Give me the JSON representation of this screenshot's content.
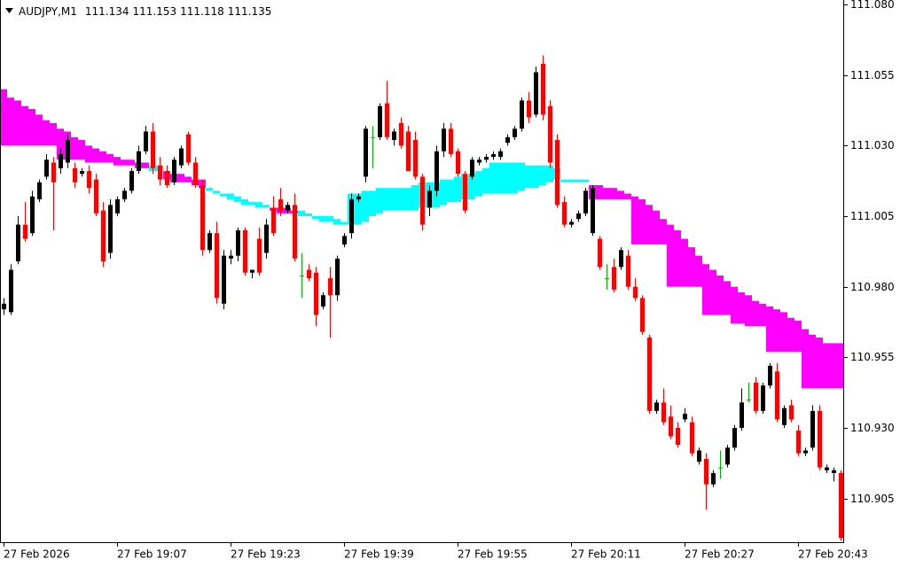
{
  "chart_data": {
    "type": "candlestick",
    "symbol": "AUDJPY,M1",
    "quote": [
      111.134,
      111.153,
      111.118,
      111.135
    ],
    "categories": [
      "27 Feb 2026",
      null,
      null,
      null,
      null,
      null,
      null,
      null,
      null,
      null,
      null,
      null,
      null,
      null,
      null,
      null,
      "27 Feb 19:07",
      null,
      null,
      null,
      null,
      null,
      null,
      null,
      null,
      null,
      null,
      null,
      null,
      null,
      null,
      null,
      "27 Feb 19:23",
      null,
      null,
      null,
      null,
      null,
      null,
      null,
      null,
      null,
      null,
      null,
      null,
      null,
      null,
      null,
      "27 Feb 19:39",
      null,
      null,
      null,
      null,
      null,
      null,
      null,
      null,
      null,
      null,
      null,
      null,
      null,
      null,
      null,
      "27 Feb 19:55",
      null,
      null,
      null,
      null,
      null,
      null,
      null,
      null,
      null,
      null,
      null,
      null,
      null,
      null,
      null,
      "27 Feb 20:11",
      null,
      null,
      null,
      null,
      null,
      null,
      null,
      null,
      null,
      null,
      null,
      null,
      null,
      null,
      null,
      "27 Feb 20:27",
      null,
      null,
      null,
      null,
      null,
      null,
      null,
      null,
      null,
      null,
      null,
      null,
      null,
      null,
      null,
      "27 Feb 20:43",
      null,
      null,
      null,
      null,
      null,
      null
    ],
    "open": [
      110.972,
      110.971,
      110.989,
      111.002,
      110.999,
      111.011,
      111.019,
      111.024,
      111.022,
      111.024,
      111.022,
      111.02,
      111.021,
      111.018,
      111.007,
      110.992,
      111.006,
      111.011,
      111.014,
      111.021,
      111.028,
      111.035,
      111.023,
      111.021,
      111.017,
      111.023,
      111.034,
      111.024,
      111.016,
      110.993,
      110.999,
      110.974,
      110.99,
      110.991,
      111.0,
      110.985,
      110.997,
      110.992,
      111.008,
      111.011,
      111.007,
      111.009,
      110.984,
      110.986,
      110.985,
      110.973,
      110.983,
      110.977,
      110.995,
      110.999,
      111.011,
      111.019,
      111.033,
      111.033,
      111.045,
      111.032,
      111.038,
      111.035,
      111.032,
      111.019,
      111.008,
      111.014,
      111.028,
      111.036,
      111.028,
      111.02,
      111.019,
      111.024,
      111.025,
      111.026,
      111.026,
      111.031,
      111.033,
      111.036,
      111.046,
      111.041,
      111.059,
      111.044,
      111.032,
      111.01,
      111.002,
      111.004,
      111.006,
      110.999,
      110.997,
      110.983,
      110.987,
      110.987,
      110.991,
      110.98,
      110.976,
      110.962,
      110.936,
      110.939,
      110.934,
      110.93,
      110.933,
      110.932,
      110.918,
      110.919,
      110.91,
      110.916,
      110.917,
      110.923,
      110.93,
      110.94,
      110.946,
      110.936,
      110.945,
      110.95,
      110.931,
      110.938,
      110.929,
      110.921,
      110.923,
      110.936,
      110.915,
      110.914,
      110.914
    ],
    "high": [
      110.976,
      110.988,
      111.005,
      111.01,
      111.014,
      111.018,
      111.027,
      111.026,
      111.029,
      111.034,
      111.024,
      111.022,
      111.023,
      111.02,
      111.01,
      111.011,
      111.012,
      111.015,
      111.022,
      111.03,
      111.037,
      111.038,
      111.026,
      111.023,
      111.026,
      111.03,
      111.035,
      111.026,
      111.018,
      111.0,
      111.003,
      110.993,
      110.993,
      111.001,
      111.001,
      110.986,
      111.001,
      111.004,
      111.012,
      111.015,
      111.01,
      111.013,
      110.992,
      110.988,
      110.987,
      110.978,
      110.987,
      110.991,
      110.999,
      111.013,
      111.013,
      111.037,
      111.037,
      111.045,
      111.053,
      111.036,
      111.04,
      111.037,
      111.035,
      111.02,
      111.016,
      111.03,
      111.038,
      111.038,
      111.029,
      111.021,
      111.026,
      111.026,
      111.027,
      111.028,
      111.029,
      111.034,
      111.037,
      111.047,
      111.049,
      111.058,
      111.062,
      111.046,
      111.034,
      111.012,
      111.004,
      111.007,
      111.015,
      111.016,
      110.998,
      110.988,
      110.99,
      110.994,
      110.993,
      110.983,
      110.977,
      110.963,
      110.94,
      110.944,
      110.938,
      110.932,
      110.937,
      110.934,
      110.923,
      110.921,
      110.915,
      110.922,
      110.924,
      110.931,
      110.944,
      110.946,
      110.948,
      110.946,
      110.953,
      110.953,
      110.938,
      110.94,
      110.931,
      110.923,
      110.938,
      110.938,
      110.917,
      110.916,
      110.915
    ],
    "low": [
      110.97,
      110.97,
      110.988,
      110.996,
      110.998,
      111.01,
      111.018,
      111.0,
      111.02,
      111.022,
      111.015,
      111.019,
      111.013,
      111.005,
      110.987,
      110.99,
      111.005,
      111.01,
      111.013,
      111.02,
      111.027,
      111.02,
      111.016,
      111.015,
      111.016,
      111.022,
      111.023,
      111.015,
      110.991,
      110.992,
      110.974,
      110.972,
      110.988,
      110.989,
      110.984,
      110.983,
      110.984,
      110.99,
      110.998,
      111.005,
      111.006,
      110.989,
      110.976,
      110.982,
      110.966,
      110.972,
      110.962,
      110.975,
      110.994,
      110.997,
      111.01,
      111.017,
      111.022,
      111.032,
      111.032,
      111.03,
      111.029,
      111.021,
      111.018,
      111.0,
      111.005,
      111.012,
      111.026,
      111.026,
      111.019,
      111.006,
      111.018,
      111.023,
      111.024,
      111.025,
      111.025,
      111.03,
      111.032,
      111.035,
      111.038,
      111.04,
      111.039,
      111.022,
      111.008,
      111.001,
      111.001,
      111.003,
      111.005,
      110.998,
      110.986,
      110.979,
      110.978,
      110.986,
      110.979,
      110.975,
      110.963,
      110.935,
      110.935,
      110.931,
      110.926,
      110.923,
      110.932,
      110.92,
      110.917,
      110.901,
      110.909,
      110.912,
      110.916,
      110.922,
      110.929,
      110.939,
      110.935,
      110.935,
      110.944,
      110.932,
      110.93,
      110.932,
      110.92,
      110.92,
      110.922,
      110.915,
      110.914,
      110.911,
      110.89
    ],
    "close": [
      110.974,
      110.986,
      111.002,
      110.997,
      111.012,
      111.017,
      111.025,
      111.017,
      111.027,
      111.032,
      111.017,
      111.021,
      111.015,
      111.006,
      110.989,
      111.009,
      111.011,
      111.014,
      111.021,
      111.028,
      111.035,
      111.022,
      111.018,
      111.016,
      111.025,
      111.029,
      111.024,
      111.016,
      110.993,
      110.999,
      110.976,
      110.991,
      110.991,
      111.0,
      110.985,
      110.986,
      110.985,
      111.002,
      110.999,
      111.007,
      111.009,
      110.99,
      110.984,
      110.983,
      110.97,
      110.977,
      110.977,
      110.99,
      110.998,
      111.011,
      111.012,
      111.036,
      111.033,
      111.044,
      111.033,
      111.035,
      111.03,
      111.021,
      111.019,
      111.002,
      111.014,
      111.028,
      111.036,
      111.027,
      111.02,
      111.007,
      111.025,
      111.025,
      111.026,
      111.027,
      111.028,
      111.033,
      111.036,
      111.046,
      111.04,
      111.056,
      111.041,
      111.024,
      111.009,
      111.002,
      111.003,
      111.006,
      111.014,
      111.015,
      110.987,
      110.983,
      110.979,
      110.993,
      110.98,
      110.976,
      110.964,
      110.936,
      110.939,
      110.932,
      110.927,
      110.924,
      110.935,
      110.921,
      110.922,
      110.91,
      110.914,
      110.916,
      110.923,
      110.93,
      110.939,
      110.94,
      110.936,
      110.945,
      110.952,
      110.933,
      110.937,
      110.933,
      110.921,
      110.922,
      110.936,
      110.916,
      110.916,
      110.915,
      110.891
    ],
    "bull_color": "#000000",
    "bear_color": "#ff0000",
    "doji_color": "#00b000",
    "bands": [
      {
        "color": "#ff00ff",
        "upper": [
          111.05,
          111.047,
          111.046,
          111.044,
          111.043,
          111.041,
          111.039,
          111.038,
          111.036,
          111.035,
          111.033,
          111.032,
          111.03,
          111.029,
          111.028,
          111.027,
          111.026,
          111.025,
          111.025,
          111.024,
          111.024,
          null,
          null,
          111.021,
          111.02,
          111.02,
          111.019,
          111.018,
          111.018,
          null,
          null,
          null,
          null,
          null,
          null,
          null,
          null,
          null,
          111.008,
          111.008,
          111.008,
          111.007,
          null,
          null,
          null,
          null,
          null,
          null,
          null,
          null,
          null,
          null,
          null,
          null,
          null,
          null,
          null,
          null,
          null,
          null,
          null,
          null,
          null,
          null,
          null,
          null,
          null,
          null,
          null,
          null,
          null,
          null,
          null,
          null,
          null,
          null,
          null,
          null,
          null,
          null,
          null,
          null,
          null,
          111.016,
          111.016,
          111.015,
          111.015,
          111.014,
          111.013,
          111.012,
          111.011,
          111.009,
          111.007,
          111.004,
          111.002,
          111.0,
          110.997,
          110.994,
          110.991,
          110.988,
          110.986,
          110.984,
          110.982,
          110.98,
          110.978,
          110.977,
          110.975,
          110.974,
          110.973,
          110.972,
          110.971,
          110.969,
          110.968,
          110.965,
          110.963,
          110.962,
          110.96,
          110.96,
          110.96
        ],
        "lower": [
          111.03,
          111.03,
          111.03,
          111.03,
          111.03,
          111.03,
          111.03,
          111.03,
          111.025,
          111.025,
          111.025,
          111.025,
          111.024,
          111.024,
          111.024,
          111.024,
          111.023,
          111.023,
          111.023,
          111.022,
          111.022,
          null,
          null,
          111.018,
          111.017,
          111.017,
          111.017,
          111.016,
          111.015,
          null,
          null,
          null,
          null,
          null,
          null,
          null,
          null,
          null,
          111.007,
          111.006,
          111.006,
          111.006,
          null,
          null,
          null,
          null,
          null,
          null,
          null,
          null,
          null,
          null,
          null,
          null,
          null,
          null,
          null,
          null,
          null,
          null,
          null,
          null,
          null,
          null,
          null,
          null,
          null,
          null,
          null,
          null,
          null,
          null,
          null,
          null,
          null,
          null,
          null,
          null,
          null,
          null,
          null,
          null,
          null,
          111.011,
          111.011,
          111.011,
          111.011,
          111.011,
          111.011,
          110.995,
          110.995,
          110.995,
          110.995,
          110.995,
          110.98,
          110.98,
          110.98,
          110.98,
          110.98,
          110.97,
          110.97,
          110.97,
          110.97,
          110.967,
          110.967,
          110.966,
          110.966,
          110.966,
          110.957,
          110.957,
          110.957,
          110.957,
          110.957,
          110.944,
          110.944,
          110.944,
          110.944,
          110.944,
          110.944
        ]
      },
      {
        "color": "#00ffff",
        "upper": [
          null,
          null,
          null,
          null,
          null,
          null,
          null,
          null,
          null,
          null,
          null,
          null,
          null,
          null,
          null,
          null,
          null,
          null,
          null,
          null,
          null,
          111.023,
          111.023,
          null,
          null,
          null,
          null,
          null,
          null,
          111.015,
          111.014,
          111.013,
          111.013,
          111.012,
          111.011,
          111.01,
          111.01,
          111.009,
          null,
          null,
          null,
          null,
          111.007,
          111.006,
          111.005,
          111.005,
          111.005,
          111.004,
          111.003,
          111.013,
          111.013,
          111.014,
          111.014,
          111.015,
          111.015,
          111.015,
          111.015,
          111.015,
          111.016,
          111.017,
          111.017,
          111.017,
          111.018,
          111.018,
          111.019,
          111.02,
          111.02,
          111.021,
          111.022,
          111.024,
          111.024,
          111.024,
          111.024,
          111.024,
          111.023,
          111.023,
          111.023,
          111.023,
          111.022,
          111.018,
          111.018,
          111.018,
          111.018,
          null,
          null,
          null,
          null,
          null,
          null,
          null,
          null,
          null,
          null,
          null,
          null,
          null,
          null,
          null,
          null,
          null,
          null,
          null,
          null,
          null,
          null,
          null,
          null,
          null,
          null,
          null,
          null,
          null,
          null,
          null,
          null,
          null,
          null,
          null,
          null
        ],
        "lower": [
          null,
          null,
          null,
          null,
          null,
          null,
          null,
          null,
          null,
          null,
          null,
          null,
          null,
          null,
          null,
          null,
          null,
          null,
          null,
          null,
          null,
          111.021,
          111.021,
          null,
          null,
          null,
          null,
          null,
          null,
          111.014,
          111.013,
          111.012,
          111.011,
          111.01,
          111.009,
          111.009,
          111.008,
          111.008,
          null,
          null,
          null,
          null,
          111.005,
          111.005,
          111.004,
          111.003,
          111.003,
          111.002,
          111.002,
          111.002,
          111.002,
          111.003,
          111.005,
          111.006,
          111.007,
          111.007,
          111.007,
          111.007,
          111.007,
          111.008,
          111.008,
          111.008,
          111.009,
          111.01,
          111.01,
          111.011,
          111.011,
          111.012,
          111.013,
          111.013,
          111.013,
          111.013,
          111.013,
          111.014,
          111.015,
          111.015,
          111.016,
          111.017,
          111.018,
          111.017,
          111.017,
          111.017,
          111.017,
          null,
          null,
          null,
          null,
          null,
          null,
          null,
          null,
          null,
          null,
          null,
          null,
          null,
          null,
          null,
          null,
          null,
          null,
          null,
          null,
          null,
          null,
          null,
          null,
          null,
          null,
          null,
          null,
          null,
          null,
          null,
          null,
          null,
          null,
          null,
          null
        ]
      }
    ],
    "ylim": [
      110.8895,
      111.0816
    ],
    "yticks": [
      {
        "value": 111.08,
        "label": "111.080"
      },
      111.055,
      {
        "value": 111.03,
        "label": "111.030"
      },
      111.005,
      {
        "value": 110.98,
        "label": "110.980"
      },
      110.955,
      {
        "value": 110.93,
        "label": "110.930"
      },
      110.905
    ],
    "grid": false
  }
}
